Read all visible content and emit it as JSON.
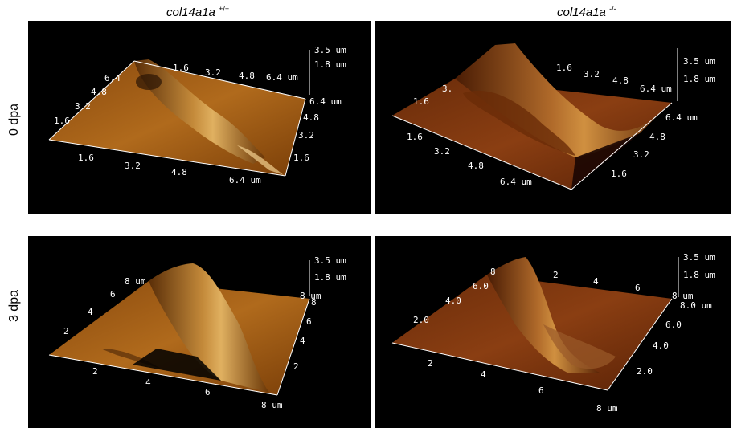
{
  "columns": [
    {
      "name": "col14a1a",
      "genotype": "+/+"
    },
    {
      "name": "col14a1a",
      "genotype": "-/-"
    }
  ],
  "rows": [
    "0 dpa",
    "3 dpa"
  ],
  "panels": [
    {
      "id": "wt-0dpa",
      "z_ticks": [
        "3.5 um",
        "1.8 um"
      ],
      "back_axis_ticks": [
        "6.4",
        "4.8",
        "3.2",
        "1.6"
      ],
      "top_axis_ticks": [
        "1.6",
        "3.2",
        "4.8",
        "6.4 um"
      ],
      "right_axis_ticks": [
        "6.4 um",
        "4.8",
        "3.2",
        "1.6"
      ],
      "front_axis_ticks": [
        "1.6",
        "3.2",
        "4.8",
        "6.4 um"
      ]
    },
    {
      "id": "ko-0dpa",
      "z_ticks": [
        "3.5 um",
        "1.8 um"
      ],
      "back_axis_ticks": [
        "3.",
        "1.6"
      ],
      "top_axis_ticks": [
        "1.6",
        "3.2",
        "4.8",
        "6.4 um"
      ],
      "right_axis_ticks": [
        "6.4 um",
        "4.8",
        "3.2",
        "1.6"
      ],
      "front_axis_ticks": [
        "1.6",
        "3.2",
        "4.8",
        "6.4 um"
      ]
    },
    {
      "id": "wt-3dpa",
      "z_ticks": [
        "3.5 um",
        "1.8 um"
      ],
      "back_axis_ticks": [
        "8 um",
        "6",
        "4",
        "2"
      ],
      "top_axis_ticks": [
        "8 um"
      ],
      "right_axis_ticks": [
        "8",
        "6",
        "4",
        "2"
      ],
      "front_axis_ticks": [
        "2",
        "4",
        "6",
        "8 um"
      ]
    },
    {
      "id": "ko-3dpa",
      "z_ticks": [
        "3.5 um",
        "1.8 um"
      ],
      "back_axis_ticks": [
        "8",
        "6.0",
        "4.0",
        "2.0"
      ],
      "top_axis_ticks": [
        "2",
        "4",
        "6",
        "8 um"
      ],
      "right_axis_ticks": [
        "8.0 um",
        "6.0",
        "4.0",
        "2.0"
      ],
      "front_axis_ticks": [
        "2",
        "4",
        "6",
        "8 um"
      ]
    }
  ]
}
